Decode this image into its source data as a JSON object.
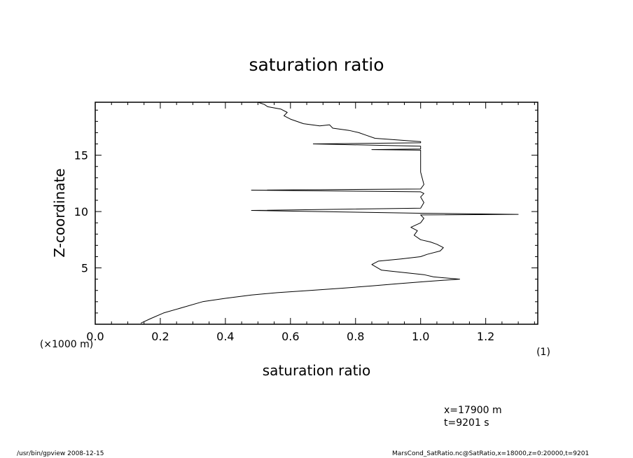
{
  "chart_data": {
    "type": "line",
    "title": "saturation ratio",
    "xlabel": "saturation ratio",
    "xlabel_unit": "(1)",
    "ylabel": "Z-coordinate",
    "ylabel_unit": "(×1000 m)",
    "xlim": [
      0.0,
      1.36
    ],
    "ylim": [
      0,
      19.7
    ],
    "grid": false,
    "xticks": [
      "0.0",
      "0.2",
      "0.4",
      "0.6",
      "0.8",
      "1.0",
      "1.2"
    ],
    "yticks": [
      "5",
      "10",
      "15"
    ],
    "series": [
      {
        "x": [
          0.14,
          0.17,
          0.21,
          0.27,
          0.33,
          0.4,
          0.48,
          0.56,
          0.66,
          0.76,
          0.85,
          0.93,
          1.02,
          1.12,
          1.04,
          1.01,
          0.88,
          0.85,
          0.87,
          0.94,
          1.0,
          1.02,
          1.06,
          1.07,
          1.05,
          1.03,
          1.0,
          0.98,
          0.99,
          0.97,
          1.0,
          1.01,
          1.0,
          1.3,
          1.0,
          0.48,
          1.0,
          1.01,
          1.0,
          1.01,
          1.0,
          0.48,
          1.0,
          1.01,
          1.0,
          1.0,
          1.0,
          1.0,
          0.85,
          1.0,
          1.0,
          0.67,
          1.0,
          1.0,
          0.86,
          0.83,
          0.81,
          0.78,
          0.73,
          0.72,
          0.69,
          0.64,
          0.6,
          0.58,
          0.59,
          0.57,
          0.53,
          0.52,
          0.5
        ],
        "y": [
          0.1,
          0.5,
          1.0,
          1.5,
          2.0,
          2.3,
          2.6,
          2.8,
          3.0,
          3.2,
          3.4,
          3.6,
          3.8,
          4.0,
          4.2,
          4.4,
          4.8,
          5.3,
          5.6,
          5.8,
          6.0,
          6.2,
          6.5,
          6.8,
          7.1,
          7.3,
          7.5,
          7.9,
          8.3,
          8.6,
          9.0,
          9.4,
          9.7,
          9.75,
          9.85,
          10.1,
          10.3,
          10.8,
          11.3,
          11.6,
          11.75,
          11.9,
          12.0,
          12.4,
          13.5,
          14.5,
          15.3,
          15.45,
          15.5,
          15.55,
          15.8,
          16.0,
          16.1,
          16.2,
          16.5,
          16.8,
          17.0,
          17.2,
          17.4,
          17.7,
          17.6,
          17.8,
          18.2,
          18.5,
          18.8,
          19.1,
          19.3,
          19.5,
          19.7
        ]
      }
    ]
  },
  "annotations": {
    "x_info": "x=17900  m",
    "t_info": "t=9201  s",
    "footer_left": "/usr/bin/gpview   2008-12-15",
    "footer_right": "MarsCond_SatRatio.nc@SatRatio,x=18000,z=0:20000,t=9201"
  }
}
